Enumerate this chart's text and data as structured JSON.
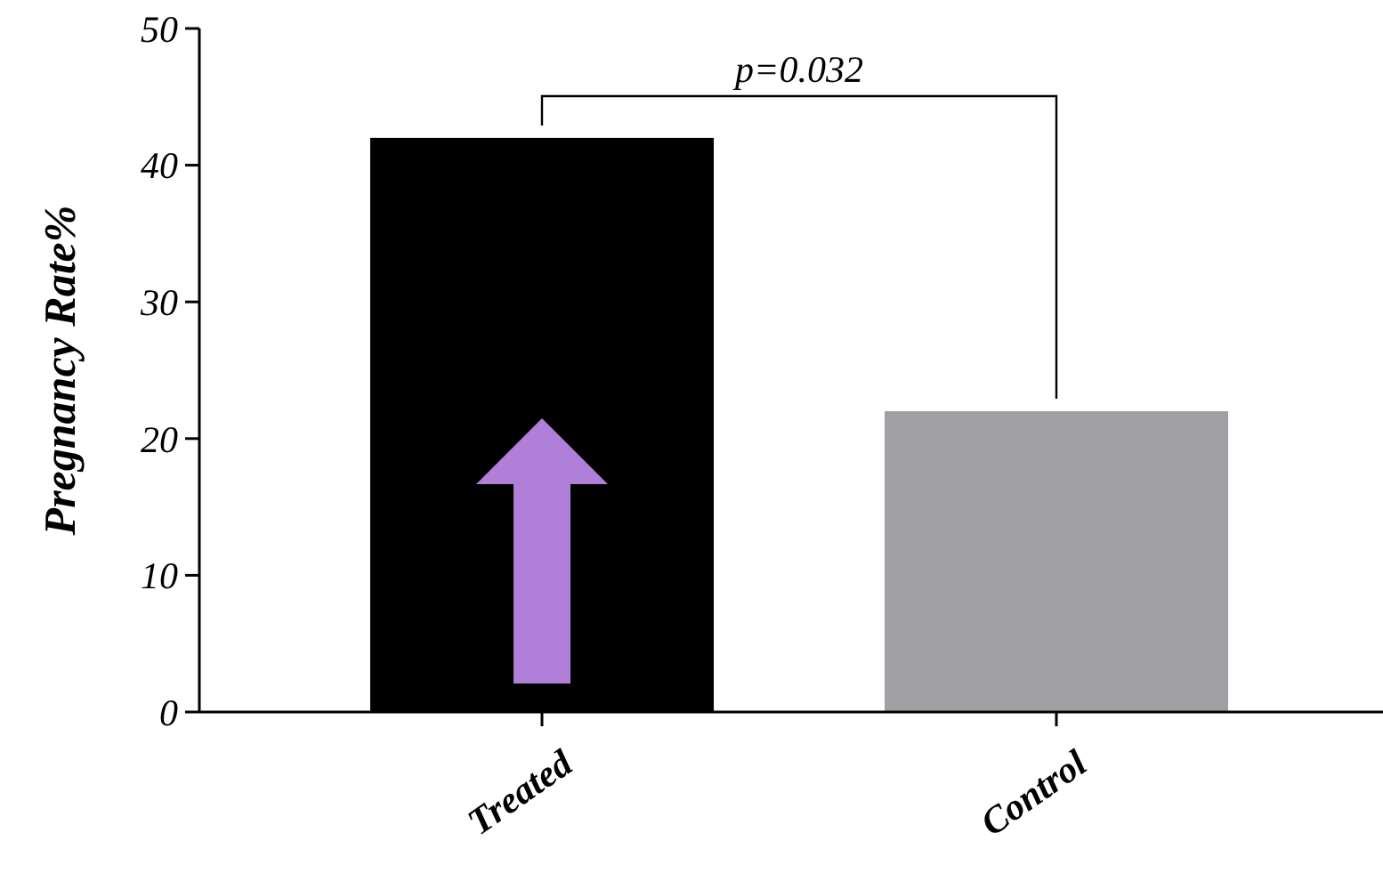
{
  "chart_data": {
    "type": "bar",
    "ylabel": "Pregnancy Rate%",
    "categories": [
      "Treated",
      "Control"
    ],
    "values": [
      42,
      22
    ],
    "colors": [
      "#000000",
      "#a09fa4"
    ],
    "ylim": [
      0,
      50
    ],
    "yticks": [
      0,
      10,
      20,
      30,
      40,
      50
    ],
    "grid": false,
    "annotations": [
      "p=0.032"
    ]
  }
}
